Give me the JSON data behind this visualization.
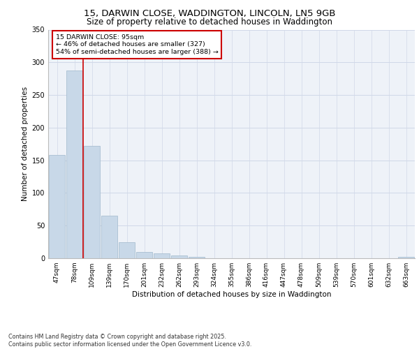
{
  "title_line1": "15, DARWIN CLOSE, WADDINGTON, LINCOLN, LN5 9GB",
  "title_line2": "Size of property relative to detached houses in Waddington",
  "xlabel": "Distribution of detached houses by size in Waddington",
  "ylabel": "Number of detached properties",
  "categories": [
    "47sqm",
    "78sqm",
    "109sqm",
    "139sqm",
    "170sqm",
    "201sqm",
    "232sqm",
    "262sqm",
    "293sqm",
    "324sqm",
    "355sqm",
    "386sqm",
    "416sqm",
    "447sqm",
    "478sqm",
    "509sqm",
    "539sqm",
    "570sqm",
    "601sqm",
    "632sqm",
    "663sqm"
  ],
  "values": [
    158,
    288,
    172,
    65,
    25,
    10,
    7,
    4,
    2,
    0,
    0,
    0,
    0,
    0,
    0,
    0,
    0,
    0,
    0,
    0,
    2
  ],
  "bar_color": "#c8d8e8",
  "bar_edge_color": "#a0b8cc",
  "grid_color": "#d0d8e8",
  "bg_color": "#eef2f8",
  "vline_color": "#cc0000",
  "annotation_text": "15 DARWIN CLOSE: 95sqm\n← 46% of detached houses are smaller (327)\n54% of semi-detached houses are larger (388) →",
  "annotation_box_color": "#cc0000",
  "ylim": [
    0,
    350
  ],
  "yticks": [
    0,
    50,
    100,
    150,
    200,
    250,
    300,
    350
  ],
  "footnote": "Contains HM Land Registry data © Crown copyright and database right 2025.\nContains public sector information licensed under the Open Government Licence v3.0.",
  "title_fontsize": 9.5,
  "subtitle_fontsize": 8.5,
  "axis_label_fontsize": 7.5,
  "tick_fontsize": 6.5,
  "annot_fontsize": 6.8,
  "footnote_fontsize": 5.8
}
